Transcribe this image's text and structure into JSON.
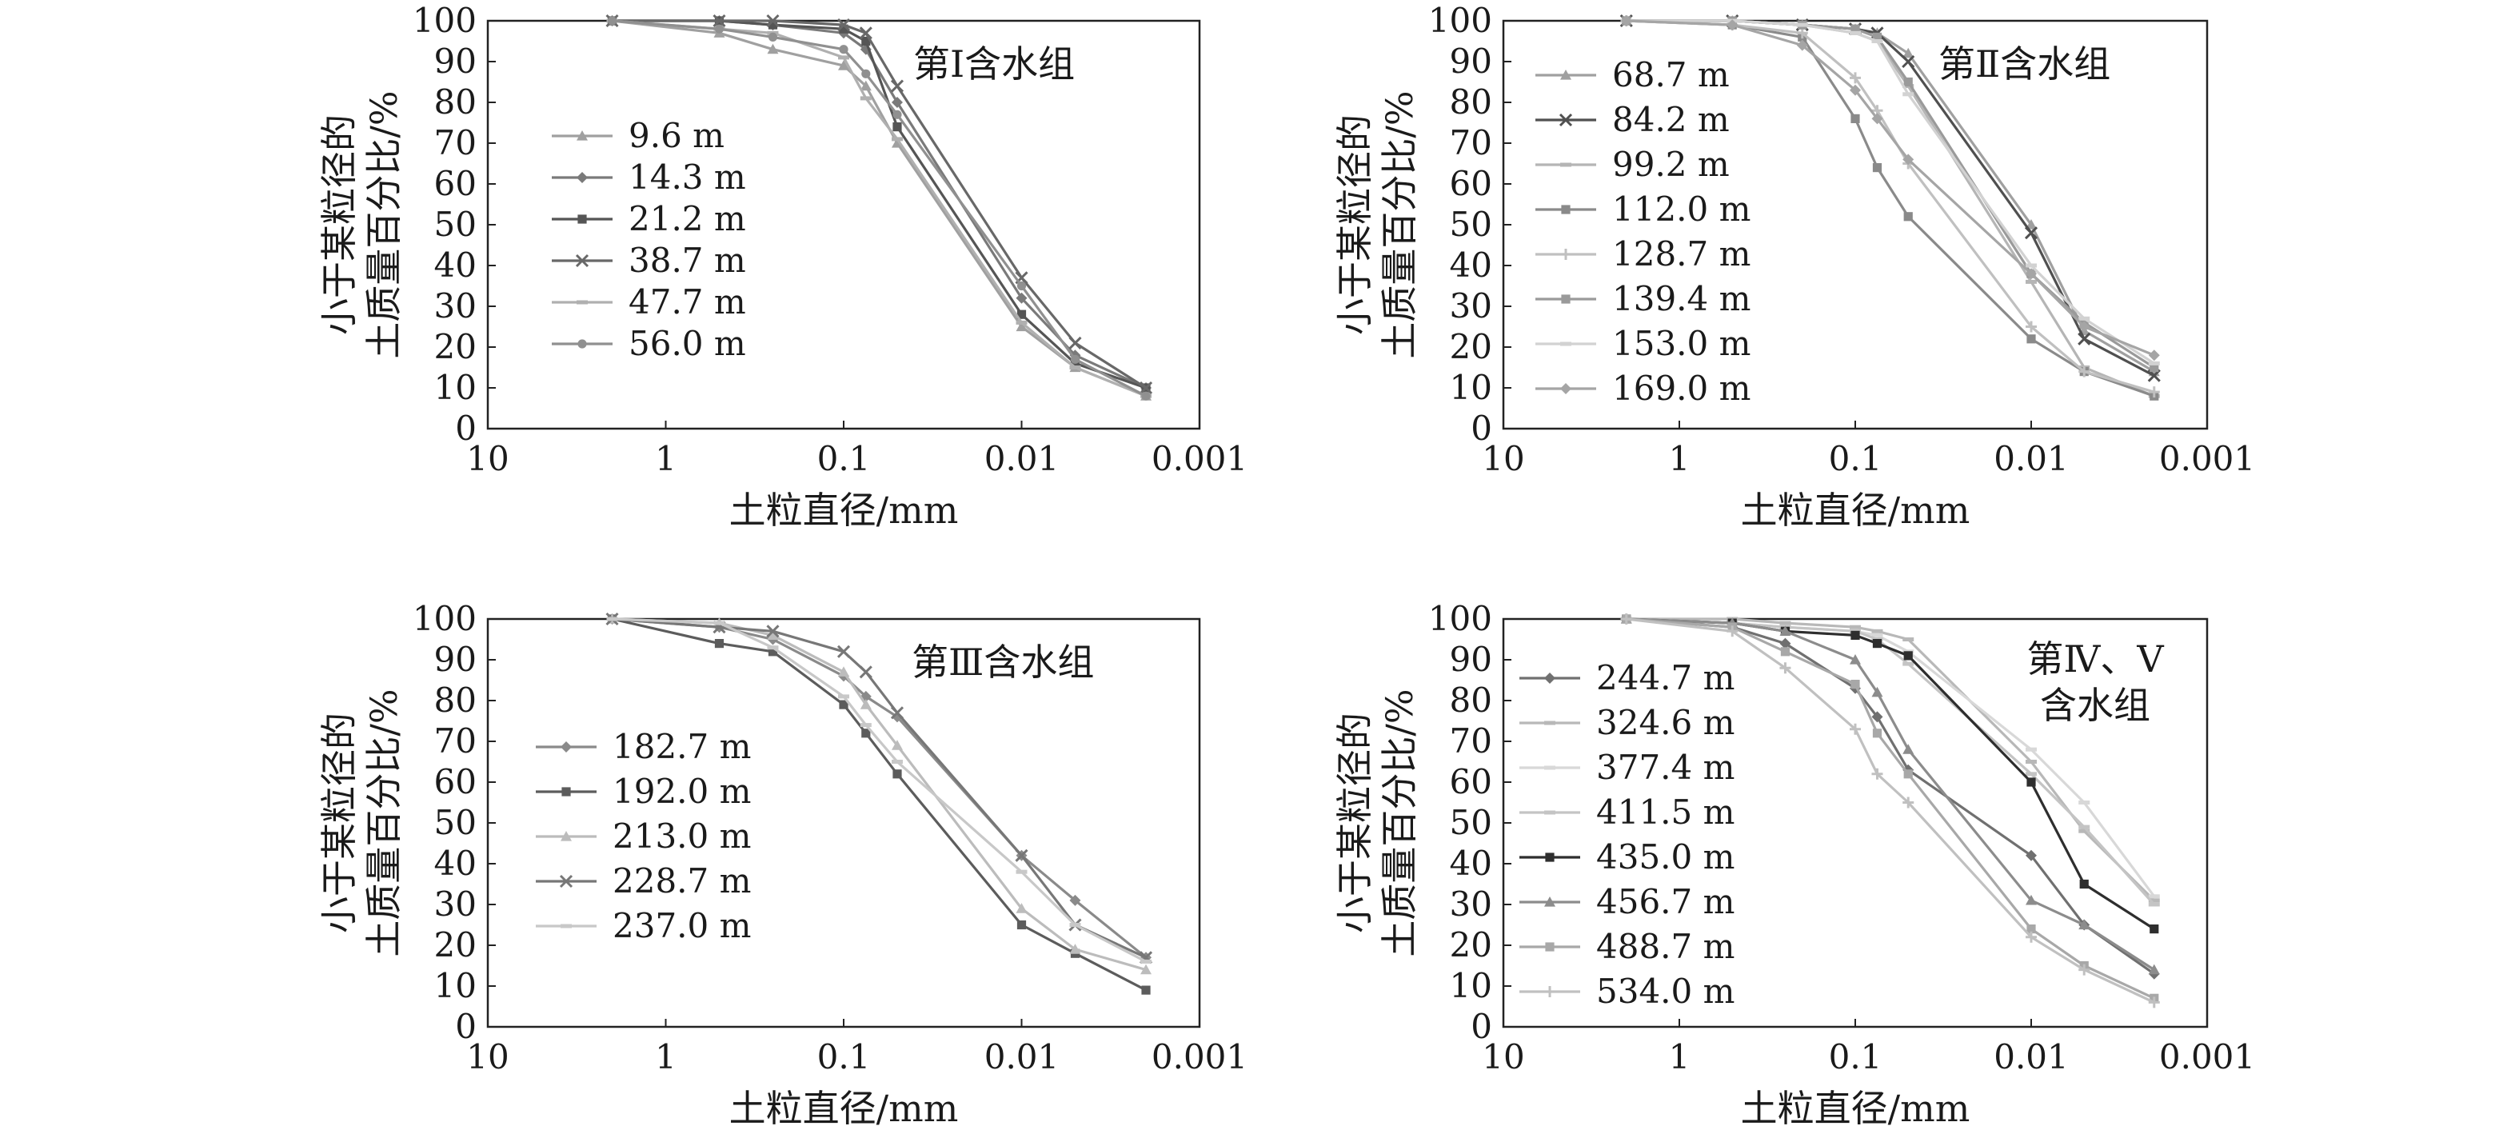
{
  "chart_data": [
    {
      "type": "line",
      "title": "",
      "label_lines": [
        "第Ⅰ含水组"
      ],
      "xlabel": "土粒直径/mm",
      "ylabel_lines": [
        "小于某粒径的",
        "土质量百分比/%"
      ],
      "xscale": "log-reversed",
      "xlim": [
        10,
        0.001
      ],
      "ylim": [
        0,
        100
      ],
      "xticks": [
        {
          "value": 10,
          "label": "10"
        },
        {
          "value": 1,
          "label": "1"
        },
        {
          "value": 0.1,
          "label": "0.1"
        },
        {
          "value": 0.01,
          "label": "0.01"
        },
        {
          "value": 0.001,
          "label": "0.001"
        }
      ],
      "yticks": [
        0,
        10,
        20,
        30,
        40,
        50,
        60,
        70,
        80,
        90,
        100
      ],
      "grid": false,
      "legend_position": "left-middle",
      "series": [
        {
          "name": "9.6 m",
          "color": "#a0a0a0",
          "marker": "triangle",
          "x": [
            2,
            0.5,
            0.25,
            0.1,
            0.075,
            0.05,
            0.01,
            0.005,
            0.002
          ],
          "y": [
            100,
            97,
            93,
            89,
            84,
            70,
            25,
            15,
            8
          ]
        },
        {
          "name": "14.3 m",
          "color": "#7a7a7a",
          "marker": "diamond",
          "x": [
            2,
            0.5,
            0.25,
            0.1,
            0.075,
            0.05,
            0.01,
            0.005,
            0.002
          ],
          "y": [
            100,
            100,
            99,
            97,
            93,
            80,
            32,
            18,
            10
          ]
        },
        {
          "name": "21.2 m",
          "color": "#555555",
          "marker": "square",
          "x": [
            2,
            0.5,
            0.25,
            0.1,
            0.075,
            0.05,
            0.01,
            0.005,
            0.002
          ],
          "y": [
            100,
            100,
            99,
            98,
            95,
            74,
            28,
            16,
            10
          ]
        },
        {
          "name": "38.7 m",
          "color": "#686868",
          "marker": "cross",
          "x": [
            2,
            0.5,
            0.25,
            0.1,
            0.075,
            0.05,
            0.01,
            0.005,
            0.002
          ],
          "y": [
            100,
            100,
            100,
            99,
            97,
            84,
            37,
            21,
            10
          ]
        },
        {
          "name": "47.7 m",
          "color": "#b0b0b0",
          "marker": "dash",
          "x": [
            2,
            0.5,
            0.25,
            0.1,
            0.075,
            0.05,
            0.01,
            0.005,
            0.002
          ],
          "y": [
            100,
            98,
            97,
            91,
            81,
            71,
            26,
            15,
            8
          ]
        },
        {
          "name": "56.0 m",
          "color": "#909090",
          "marker": "circle",
          "x": [
            2,
            0.5,
            0.25,
            0.1,
            0.075,
            0.05,
            0.01,
            0.005,
            0.002
          ],
          "y": [
            100,
            98,
            96,
            93,
            87,
            77,
            35,
            17,
            8
          ]
        }
      ]
    },
    {
      "type": "line",
      "title": "",
      "label_lines": [
        "第Ⅱ含水组"
      ],
      "xlabel": "土粒直径/mm",
      "ylabel_lines": [
        "小于某粒径的",
        "土质量百分比/%"
      ],
      "xscale": "log-reversed",
      "xlim": [
        10,
        0.001
      ],
      "ylim": [
        0,
        100
      ],
      "xticks": [
        {
          "value": 10,
          "label": "10"
        },
        {
          "value": 1,
          "label": "1"
        },
        {
          "value": 0.1,
          "label": "0.1"
        },
        {
          "value": 0.01,
          "label": "0.01"
        },
        {
          "value": 0.001,
          "label": "0.001"
        }
      ],
      "yticks": [
        0,
        10,
        20,
        30,
        40,
        50,
        60,
        70,
        80,
        90,
        100
      ],
      "grid": false,
      "legend_position": "left-middle",
      "series": [
        {
          "name": "68.7 m",
          "color": "#a0a0a0",
          "marker": "triangle",
          "x": [
            2,
            0.5,
            0.2,
            0.1,
            0.075,
            0.05,
            0.01,
            0.005,
            0.002
          ],
          "y": [
            100,
            100,
            99,
            98,
            97,
            92,
            50,
            24,
            14
          ]
        },
        {
          "name": "84.2 m",
          "color": "#505050",
          "marker": "cross",
          "x": [
            2,
            0.5,
            0.2,
            0.1,
            0.075,
            0.05,
            0.01,
            0.005,
            0.002
          ],
          "y": [
            100,
            100,
            99,
            98,
            97,
            90,
            48,
            22,
            13
          ]
        },
        {
          "name": "99.2 m",
          "color": "#b5b5b5",
          "marker": "dash",
          "x": [
            2,
            0.5,
            0.2,
            0.1,
            0.075,
            0.05,
            0.01,
            0.005,
            0.002
          ],
          "y": [
            100,
            100,
            99,
            97,
            95,
            84,
            36,
            15,
            8
          ]
        },
        {
          "name": "112.0 m",
          "color": "#8a8a8a",
          "marker": "square",
          "x": [
            2,
            0.5,
            0.2,
            0.1,
            0.075,
            0.05,
            0.01,
            0.005,
            0.002
          ],
          "y": [
            100,
            99,
            96,
            76,
            64,
            52,
            22,
            14,
            8
          ]
        },
        {
          "name": "128.7 m",
          "color": "#c0c0c0",
          "marker": "plus",
          "x": [
            2,
            0.5,
            0.2,
            0.1,
            0.075,
            0.05,
            0.01,
            0.005,
            0.002
          ],
          "y": [
            100,
            99,
            97,
            86,
            78,
            65,
            25,
            14,
            9
          ]
        },
        {
          "name": "139.4 m",
          "color": "#9a9a9a",
          "marker": "square",
          "x": [
            2,
            0.5,
            0.2,
            0.1,
            0.075,
            0.05,
            0.01,
            0.005,
            0.002
          ],
          "y": [
            100,
            100,
            99,
            98,
            96,
            85,
            38,
            26,
            15
          ]
        },
        {
          "name": "153.0 m",
          "color": "#d2d2d2",
          "marker": "dash",
          "x": [
            2,
            0.5,
            0.2,
            0.1,
            0.075,
            0.05,
            0.01,
            0.005,
            0.002
          ],
          "y": [
            100,
            100,
            99,
            97,
            95,
            82,
            40,
            27,
            16
          ]
        },
        {
          "name": "169.0 m",
          "color": "#a5a5a5",
          "marker": "diamond",
          "x": [
            2,
            0.5,
            0.2,
            0.1,
            0.075,
            0.05,
            0.01,
            0.005,
            0.002
          ],
          "y": [
            100,
            99,
            94,
            83,
            76,
            66,
            38,
            25,
            18
          ]
        }
      ]
    },
    {
      "type": "line",
      "title": "",
      "label_lines": [
        "第Ⅲ含水组"
      ],
      "xlabel": "土粒直径/mm",
      "ylabel_lines": [
        "小于某粒径的",
        "土质量百分比/%"
      ],
      "xscale": "log-reversed",
      "xlim": [
        10,
        0.001
      ],
      "ylim": [
        0,
        100
      ],
      "xticks": [
        {
          "value": 10,
          "label": "10"
        },
        {
          "value": 1,
          "label": "1"
        },
        {
          "value": 0.1,
          "label": "0.1"
        },
        {
          "value": 0.01,
          "label": "0.01"
        },
        {
          "value": 0.001,
          "label": "0.001"
        }
      ],
      "yticks": [
        0,
        10,
        20,
        30,
        40,
        50,
        60,
        70,
        80,
        90,
        100
      ],
      "grid": false,
      "legend_position": "left-middle",
      "series": [
        {
          "name": "182.7 m",
          "color": "#8a8a8a",
          "marker": "diamond",
          "x": [
            2,
            0.5,
            0.25,
            0.1,
            0.075,
            0.05,
            0.01,
            0.005,
            0.002
          ],
          "y": [
            100,
            98,
            95,
            86,
            81,
            76,
            42,
            31,
            17
          ]
        },
        {
          "name": "192.0 m",
          "color": "#5c5c5c",
          "marker": "square",
          "x": [
            2,
            0.5,
            0.25,
            0.1,
            0.075,
            0.05,
            0.01,
            0.005,
            0.002
          ],
          "y": [
            100,
            94,
            92,
            79,
            72,
            62,
            25,
            18,
            9
          ]
        },
        {
          "name": "213.0 m",
          "color": "#bcbcbc",
          "marker": "triangle",
          "x": [
            2,
            0.5,
            0.25,
            0.1,
            0.075,
            0.05,
            0.01,
            0.005,
            0.002
          ],
          "y": [
            100,
            99,
            96,
            87,
            79,
            69,
            29,
            19,
            14
          ]
        },
        {
          "name": "228.7 m",
          "color": "#777777",
          "marker": "cross",
          "x": [
            2,
            0.5,
            0.25,
            0.1,
            0.075,
            0.05,
            0.01,
            0.005,
            0.002
          ],
          "y": [
            100,
            98,
            97,
            92,
            87,
            77,
            42,
            25,
            17
          ]
        },
        {
          "name": "237.0 m",
          "color": "#c8c8c8",
          "marker": "dash",
          "x": [
            2,
            0.5,
            0.25,
            0.1,
            0.075,
            0.05,
            0.01,
            0.005,
            0.002
          ],
          "y": [
            100,
            99,
            93,
            81,
            74,
            65,
            38,
            25,
            16
          ]
        }
      ]
    },
    {
      "type": "line",
      "title": "",
      "label_lines": [
        "第Ⅳ、Ⅴ",
        "含水组"
      ],
      "xlabel": "土粒直径/mm",
      "ylabel_lines": [
        "小于某粒径的",
        "土质量百分比/%"
      ],
      "xscale": "log-reversed",
      "xlim": [
        10,
        0.001
      ],
      "ylim": [
        0,
        100
      ],
      "xticks": [
        {
          "value": 10,
          "label": "10"
        },
        {
          "value": 1,
          "label": "1"
        },
        {
          "value": 0.1,
          "label": "0.1"
        },
        {
          "value": 0.01,
          "label": "0.01"
        },
        {
          "value": 0.001,
          "label": "0.001"
        }
      ],
      "yticks": [
        0,
        10,
        20,
        30,
        40,
        50,
        60,
        70,
        80,
        90,
        100
      ],
      "grid": false,
      "legend_position": "left",
      "series": [
        {
          "name": "244.7 m",
          "color": "#707070",
          "marker": "diamond",
          "x": [
            2,
            0.5,
            0.25,
            0.1,
            0.075,
            0.05,
            0.01,
            0.005,
            0.002
          ],
          "y": [
            100,
            98,
            94,
            83,
            76,
            63,
            42,
            25,
            13
          ]
        },
        {
          "name": "324.6 m",
          "color": "#b8b8b8",
          "marker": "dash",
          "x": [
            2,
            0.5,
            0.25,
            0.1,
            0.075,
            0.05,
            0.01,
            0.005,
            0.002
          ],
          "y": [
            100,
            100,
            99,
            98,
            97,
            95,
            65,
            48,
            31
          ]
        },
        {
          "name": "377.4 m",
          "color": "#d8d8d8",
          "marker": "dash",
          "x": [
            2,
            0.5,
            0.25,
            0.1,
            0.075,
            0.05,
            0.01,
            0.005,
            0.002
          ],
          "y": [
            100,
            99,
            98,
            97,
            96,
            92,
            68,
            55,
            32
          ]
        },
        {
          "name": "411.5 m",
          "color": "#c4c4c4",
          "marker": "dash",
          "x": [
            2,
            0.5,
            0.25,
            0.1,
            0.075,
            0.05,
            0.01,
            0.005,
            0.002
          ],
          "y": [
            100,
            99,
            98,
            97,
            95,
            89,
            62,
            49,
            30
          ]
        },
        {
          "name": "435.0 m",
          "color": "#2e2e2e",
          "marker": "square",
          "x": [
            2,
            0.5,
            0.25,
            0.1,
            0.075,
            0.05,
            0.01,
            0.005,
            0.002
          ],
          "y": [
            100,
            99,
            97,
            96,
            94,
            91,
            60,
            35,
            24
          ]
        },
        {
          "name": "456.7 m",
          "color": "#8c8c8c",
          "marker": "triangle",
          "x": [
            2,
            0.5,
            0.25,
            0.1,
            0.075,
            0.05,
            0.01,
            0.005,
            0.002
          ],
          "y": [
            100,
            99,
            97,
            90,
            82,
            68,
            31,
            25,
            14
          ]
        },
        {
          "name": "488.7 m",
          "color": "#a8a8a8",
          "marker": "square",
          "x": [
            2,
            0.5,
            0.25,
            0.1,
            0.075,
            0.05,
            0.01,
            0.005,
            0.002
          ],
          "y": [
            100,
            98,
            92,
            84,
            72,
            62,
            24,
            15,
            7
          ]
        },
        {
          "name": "534.0 m",
          "color": "#c0c0c0",
          "marker": "plus",
          "x": [
            2,
            0.5,
            0.25,
            0.1,
            0.075,
            0.05,
            0.01,
            0.005,
            0.002
          ],
          "y": [
            100,
            97,
            88,
            73,
            62,
            55,
            22,
            14,
            6
          ]
        }
      ]
    }
  ]
}
